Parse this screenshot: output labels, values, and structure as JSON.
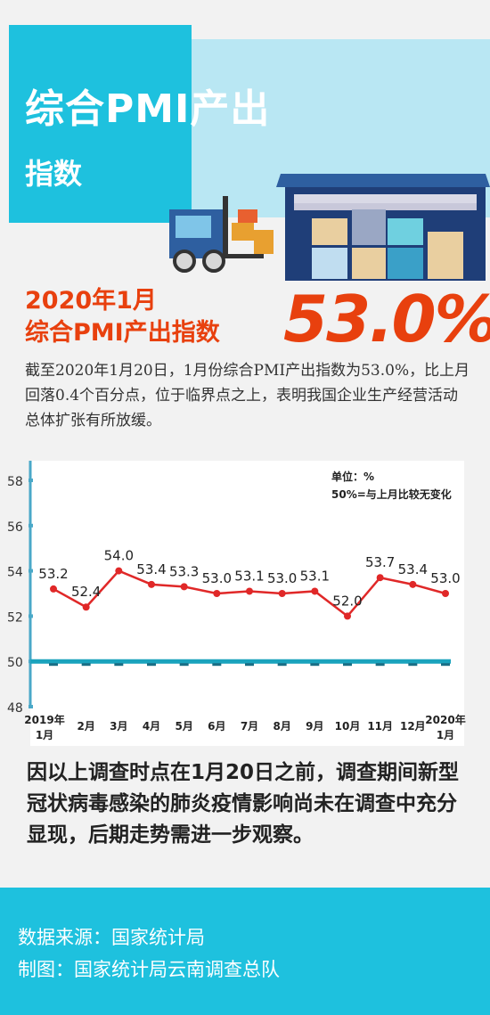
{
  "header": {
    "title": "综合PMI产出",
    "subtitle": "指数"
  },
  "headline": {
    "line1": "2020年1月",
    "line2": "综合PMI产出指数",
    "value": "53.0%"
  },
  "intro": "截至2020年1月20日，1月份综合PMI产出指数为53.0%，比上月回落0.4个百分点，位于临界点之上，表明我国企业生产经营活动总体扩张有所放缓。",
  "chart_data": {
    "type": "line",
    "categories": [
      "2019年1月",
      "2月",
      "3月",
      "4月",
      "5月",
      "6月",
      "7月",
      "8月",
      "9月",
      "10月",
      "11月",
      "12月",
      "2020年1月"
    ],
    "series": [
      {
        "values": [
          53.2,
          52.4,
          54.0,
          53.4,
          53.3,
          53.0,
          53.1,
          53.0,
          53.1,
          52.0,
          53.7,
          53.4,
          53.0
        ]
      }
    ],
    "value_labels": [
      "53.2",
      "52.4",
      "54.0",
      "53.4",
      "53.3",
      "53.0",
      "53.1",
      "53.0",
      "53.1",
      "52.0",
      "53.7",
      "53.4",
      "53.0"
    ],
    "reference_value": 50,
    "ylim": [
      48,
      58
    ],
    "yticks": [
      "48",
      "50",
      "52",
      "54",
      "56",
      "58"
    ],
    "unit_note": "单位：%",
    "threshold_note": "50%=与上月比较无变化",
    "colors": {
      "line": "#e02828",
      "reference": "#1aa3bd",
      "axis": "#4aa8c8"
    }
  },
  "note": "因以上调查时点在1月20日之前，调查期间新型冠状病毒感染的肺炎疫情影响尚未在调查中充分显现，后期走势需进一步观察。",
  "footer": {
    "source": "数据来源：国家统计局",
    "maker": "制图：国家统计局云南调查总队"
  }
}
